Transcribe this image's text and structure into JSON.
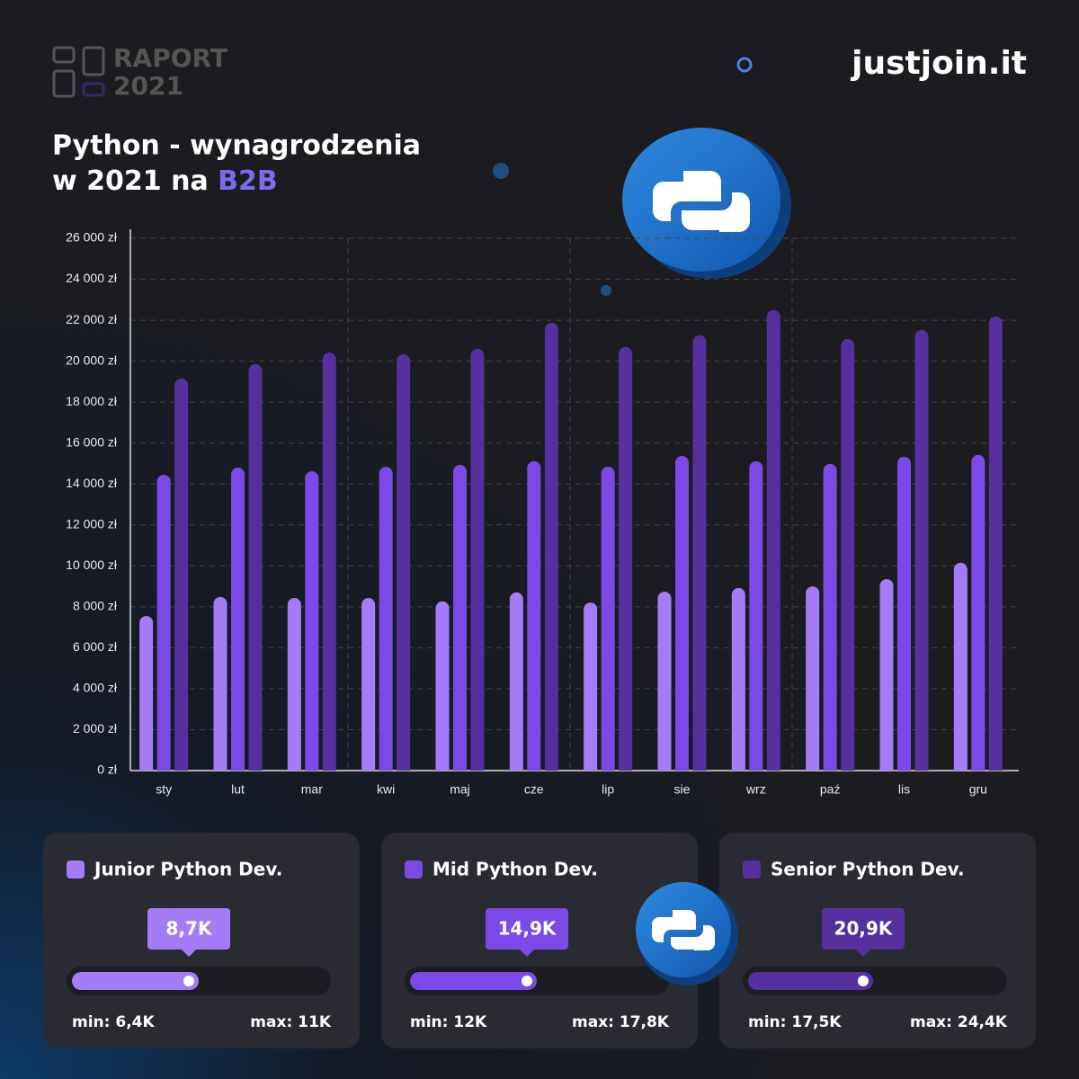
{
  "header": {
    "report": "RAPORT",
    "year": "2021",
    "brand": "justjoin.it"
  },
  "chart_data": {
    "type": "bar",
    "title": "Python - wynagrodzenia",
    "subtitle": "w 2021 na",
    "subtitle_highlight": "B2B",
    "categories": [
      "sty",
      "lut",
      "mar",
      "kwi",
      "maj",
      "cze",
      "lip",
      "sie",
      "wrz",
      "paź",
      "lis",
      "gru"
    ],
    "series": [
      {
        "name": "Junior Python Dev.",
        "color": "#a57cf8",
        "values": [
          7550,
          8480,
          8430,
          8430,
          8260,
          8700,
          8210,
          8740,
          8920,
          9000,
          9350,
          10150
        ],
        "average": {
          "value": 8700,
          "label": "8,7K"
        },
        "min": {
          "value": 6400,
          "label": "min: 6,4K"
        },
        "max": {
          "value": 11000,
          "label": "max: 11K"
        }
      },
      {
        "name": "Mid Python Dev.",
        "color": "#7b4ae6",
        "values": [
          14450,
          14800,
          14620,
          14840,
          14930,
          15110,
          14840,
          15370,
          15110,
          14980,
          15330,
          15420
        ],
        "average": {
          "value": 14900,
          "label": "14,9K"
        },
        "min": {
          "value": 12000,
          "label": "min: 12K"
        },
        "max": {
          "value": 17800,
          "label": "max: 17,8K"
        }
      },
      {
        "name": "Senior Python Dev.",
        "color": "#55309e",
        "values": [
          19150,
          19850,
          20420,
          20330,
          20600,
          21870,
          20690,
          21260,
          22490,
          21080,
          21520,
          22180
        ],
        "average": {
          "value": 20900,
          "label": "20,9K"
        },
        "min": {
          "value": 17500,
          "label": "min: 17,5K"
        },
        "max": {
          "value": 24400,
          "label": "max: 24,4K"
        }
      }
    ],
    "ylim": [
      0,
      26000
    ],
    "yticks": [
      {
        "value": 0,
        "label": "0 zł"
      },
      {
        "value": 2000,
        "label": "2 000 zł"
      },
      {
        "value": 4000,
        "label": "4 000 zł"
      },
      {
        "value": 6000,
        "label": "6 000 zł"
      },
      {
        "value": 8000,
        "label": "8 000 zł"
      },
      {
        "value": 10000,
        "label": "10 000 zł"
      },
      {
        "value": 12000,
        "label": "12 000 zł"
      },
      {
        "value": 14000,
        "label": "14 000 zł"
      },
      {
        "value": 16000,
        "label": "16 000 zł"
      },
      {
        "value": 18000,
        "label": "18 000 zł"
      },
      {
        "value": 20000,
        "label": "20 000 zł"
      },
      {
        "value": 22000,
        "label": "22 000 zł"
      },
      {
        "value": 24000,
        "label": "24 000 zł"
      },
      {
        "value": 26000,
        "label": "26 000 zł"
      }
    ],
    "grid": true
  }
}
